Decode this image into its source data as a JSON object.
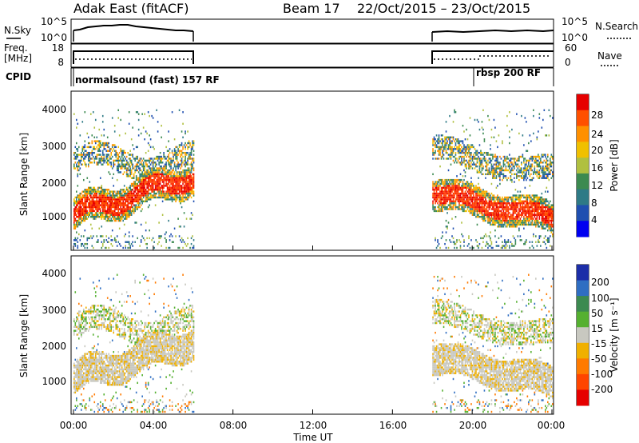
{
  "header": {
    "station": "Adak East (fitACF)",
    "beam": "Beam 17",
    "date_range": "22/Oct/2015 – 23/Oct/2015"
  },
  "noise_panel": {
    "left_label": "N.Sky",
    "left_ticks": [
      "10^5",
      "10^0"
    ],
    "right_label": "N.Search",
    "right_ticks": [
      "10^5",
      "10^0"
    ]
  },
  "freq_panel": {
    "left_label_1": "Freq.",
    "left_label_2": "[MHz]",
    "left_ticks": [
      "18",
      "8"
    ],
    "right_label": "Nave",
    "right_ticks": [
      "60",
      "0"
    ]
  },
  "cpid_panel": {
    "label": "CPID",
    "mode_1": "normalsound (fast) 157 RF",
    "mode_2": "rbsp 200 RF"
  },
  "power_colorbar": {
    "label": "Power [dB]",
    "ticks": [
      "28",
      "24",
      "20",
      "16",
      "12",
      "8",
      "4"
    ],
    "colors": [
      "#e60000",
      "#ff5000",
      "#ff9000",
      "#f0c000",
      "#b0c040",
      "#3c8a50",
      "#2e7a86",
      "#1f4fb0",
      "#0000f0"
    ]
  },
  "velocity_colorbar": {
    "label": "Velocity [m s⁻¹]",
    "ticks": [
      "200",
      "100",
      "50",
      "15",
      "-15",
      "-50",
      "-100",
      "-200"
    ],
    "colors": [
      "#1c2ea8",
      "#2f6ec2",
      "#3c8a50",
      "#55b030",
      "#c8c8c0",
      "#f0b000",
      "#ff7a00",
      "#ff4500",
      "#e60000"
    ]
  },
  "chart_data": [
    {
      "type": "heatmap",
      "title": "Power",
      "ylabel": "Slant Range [km]",
      "xlabel": "",
      "ylim": [
        200,
        4600
      ],
      "yticks": [
        "4000",
        "3000",
        "2000",
        "1000"
      ],
      "x_ticks": [
        "00:00",
        "04:00",
        "08:00",
        "12:00",
        "16:00",
        "20:00",
        "00:00"
      ],
      "data_windows_hours": [
        [
          0,
          6
        ],
        [
          18,
          24
        ]
      ],
      "dominant_features": [
        {
          "name": "near-range echo band",
          "range_km": [
            900,
            2000
          ],
          "power_db": 28
        },
        {
          "name": "far-range echo band",
          "range_km": [
            2200,
            3000
          ],
          "power_db": 20
        }
      ]
    },
    {
      "type": "heatmap",
      "title": "Velocity",
      "ylabel": "Slant Range [km]",
      "xlabel": "Time UT",
      "ylim": [
        200,
        4600
      ],
      "yticks": [
        "4000",
        "3000",
        "2000",
        "1000"
      ],
      "x_ticks": [
        "00:00",
        "04:00",
        "08:00",
        "12:00",
        "16:00",
        "20:00",
        "00:00"
      ],
      "data_windows_hours": [
        [
          0,
          6
        ],
        [
          18,
          24
        ]
      ],
      "dominant_features": [
        {
          "name": "ground scatter band",
          "range_km": [
            900,
            2000
          ],
          "velocity_ms": 0
        }
      ]
    }
  ],
  "x_axis_label": "Time UT"
}
